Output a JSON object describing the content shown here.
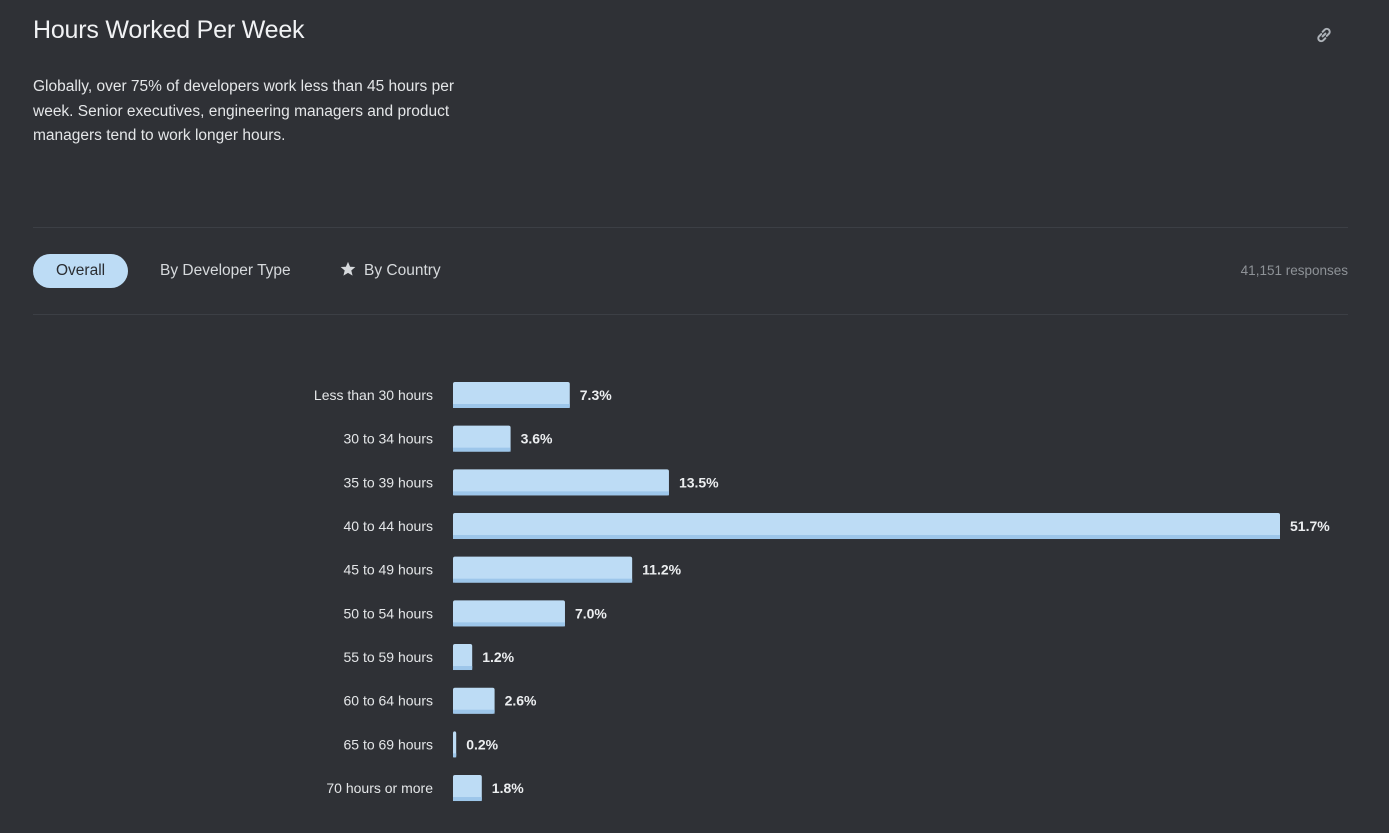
{
  "header": {
    "title": "Hours Worked Per Week",
    "description": "Globally, over 75% of developers work less than 45 hours per week. Senior executives, engineering managers and product managers tend to work longer hours.",
    "link_icon": "link-icon"
  },
  "tabs": [
    {
      "label": "Overall",
      "active": true
    },
    {
      "label": "By Developer Type",
      "active": false
    },
    {
      "label": "By Country",
      "active": false,
      "icon": "star-icon"
    }
  ],
  "responses": "41,151 responses",
  "colors": {
    "background": "#2f3136",
    "bar": "#bddcf5",
    "bar_shade": "#9dc6ea",
    "active_tab": "#bddcf5"
  },
  "chart_data": {
    "type": "bar",
    "orientation": "horizontal",
    "categories": [
      "Less than 30 hours",
      "30 to 34 hours",
      "35 to 39 hours",
      "40 to 44 hours",
      "45 to 49 hours",
      "50 to 54 hours",
      "55 to 59 hours",
      "60 to 64 hours",
      "65 to 69 hours",
      "70 hours or more"
    ],
    "values": [
      7.3,
      3.6,
      13.5,
      51.7,
      11.2,
      7.0,
      1.2,
      2.6,
      0.2,
      1.8
    ],
    "value_labels": [
      "7.3%",
      "3.6%",
      "13.5%",
      "51.7%",
      "11.2%",
      "7.0%",
      "1.2%",
      "2.6%",
      "0.2%",
      "1.8%"
    ],
    "unit": "%",
    "grid": false,
    "legend": "none"
  }
}
